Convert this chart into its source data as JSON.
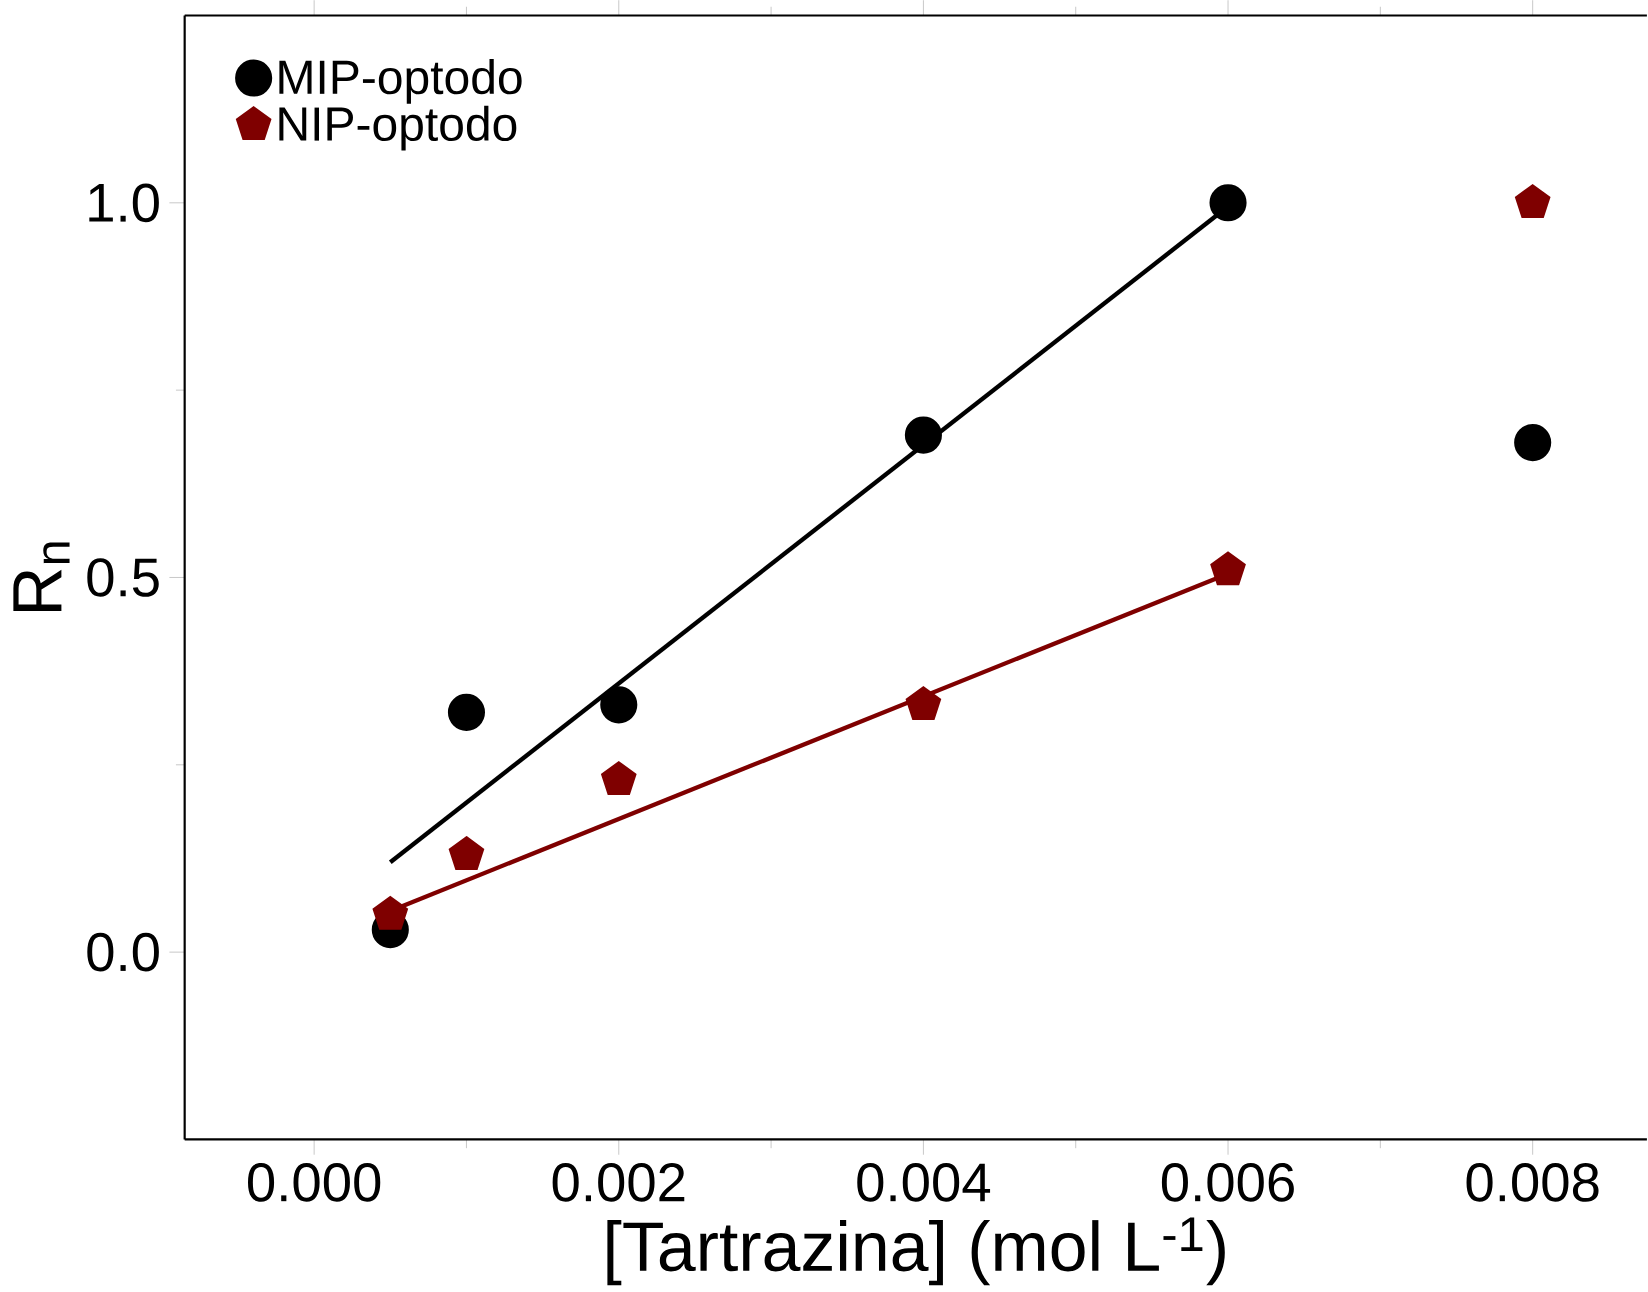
{
  "chart_data": {
    "type": "scatter",
    "xlabel": "[Tartrazina] (mol L$^{-1}$)",
    "ylabel": "R$_{n}$",
    "xlim": [
      -0.00085,
      0.00875
    ],
    "ylim": [
      -0.25,
      1.25
    ],
    "xticks": [
      {
        "value": 0,
        "label": "0.000"
      },
      {
        "value": 0.002,
        "label": "0.002"
      },
      {
        "value": 0.004,
        "label": "0.004"
      },
      {
        "value": 0.006,
        "label": "0.006"
      },
      {
        "value": 0.008,
        "label": "0.008"
      }
    ],
    "yticks": [
      {
        "value": 0,
        "label": "0.0"
      },
      {
        "value": 0.5,
        "label": "0.5"
      },
      {
        "value": 1,
        "label": "1.0"
      }
    ],
    "legend": "top left",
    "grid": false,
    "series": [
      {
        "name": "MIP-optodo",
        "color": "#000000",
        "x": [
          0.0005,
          0.001,
          0.002,
          0.004,
          0.006,
          0.008
        ],
        "values": [
          0.03,
          0.32,
          0.33,
          0.69,
          1.0,
          0.68
        ]
      },
      {
        "name": "NIP-optodo",
        "color": "#7f0000",
        "x": [
          0.0005,
          0.001,
          0.002,
          0.004,
          0.006,
          0.008
        ],
        "values": [
          0.05,
          0.13,
          0.23,
          0.33,
          0.51,
          1.0
        ]
      },
      {
        "type": "line",
        "color": "#000000",
        "x": [
          0.0005,
          0.006
        ],
        "values": [
          0.12,
          0.995
        ]
      },
      {
        "type": "line",
        "color": "#7f0000",
        "x": [
          0.0005,
          0.006
        ],
        "values": [
          0.055,
          0.505
        ]
      }
    ]
  }
}
